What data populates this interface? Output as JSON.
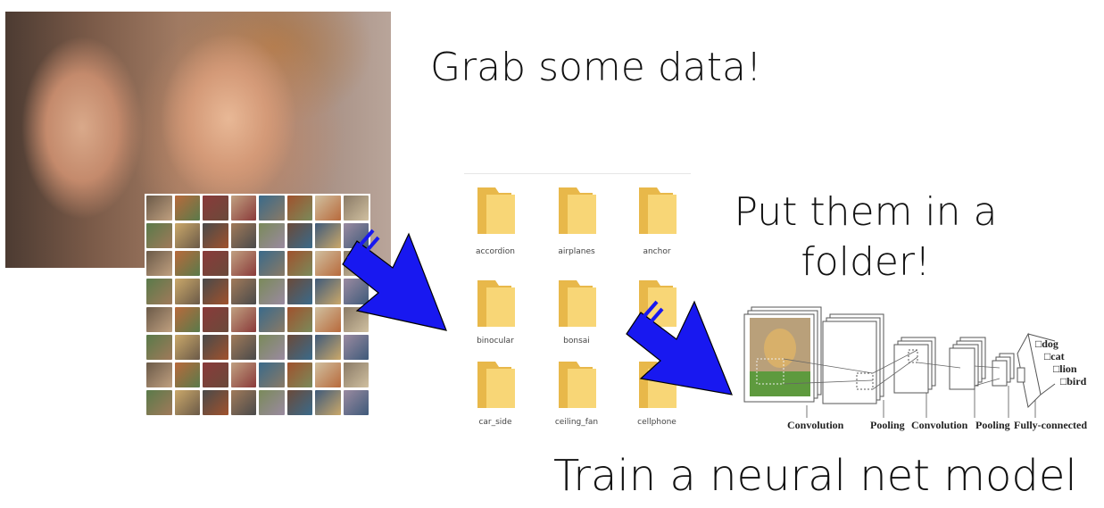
{
  "headings": {
    "grab": "Grab some data!",
    "folder": "Put them in a folder!",
    "train": "Train a neural net model"
  },
  "folders": [
    {
      "name": "accordion"
    },
    {
      "name": "airplanes"
    },
    {
      "name": "anchor"
    },
    {
      "name": "binocular"
    },
    {
      "name": "bonsai"
    },
    {
      "name": ""
    },
    {
      "name": "car_side"
    },
    {
      "name": "ceiling_fan"
    },
    {
      "name": "cellphone"
    }
  ],
  "cnn": {
    "layers": [
      "Convolution",
      "Pooling",
      "Convolution",
      "Pooling",
      "Fully-connected"
    ],
    "outputs": [
      "dog",
      "cat",
      "lion",
      "bird"
    ]
  },
  "colors": {
    "arrow_fill": "#1818f0",
    "arrow_stroke": "#000000",
    "folder_yellow": "#f8d676",
    "folder_back": "#e8b84a",
    "text": "#111111"
  },
  "icons": {
    "arrow": "arrow-icon",
    "folder": "folder-icon"
  }
}
